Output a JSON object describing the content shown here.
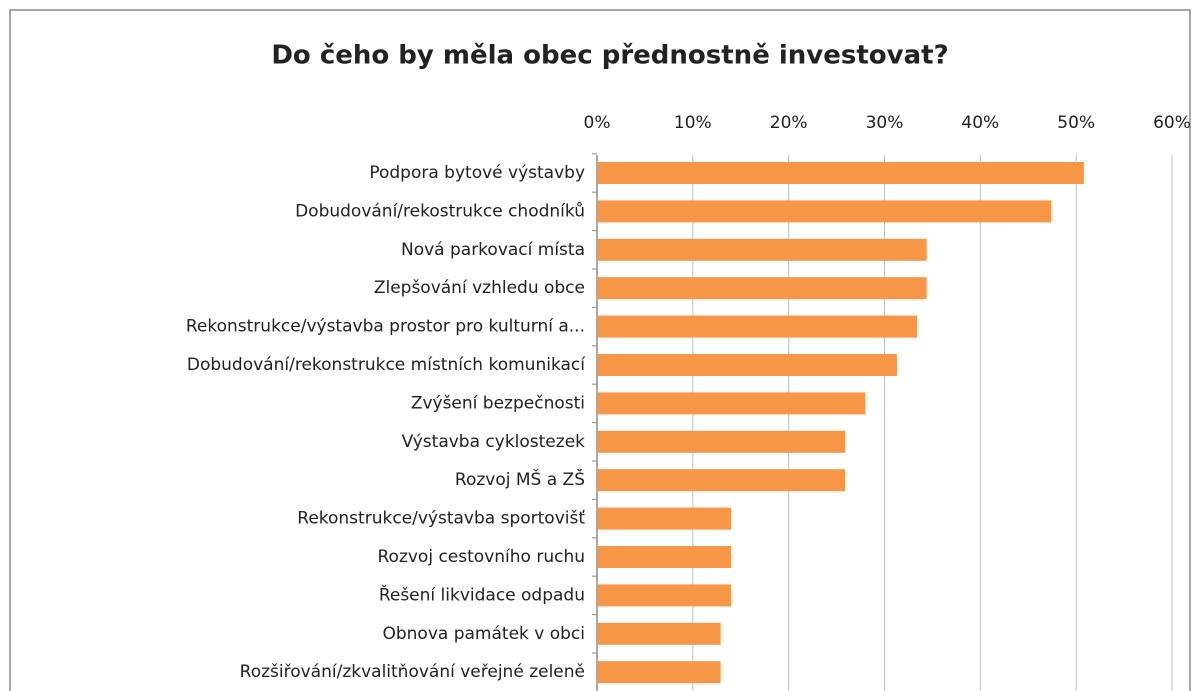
{
  "chart_data": {
    "type": "bar",
    "orientation": "horizontal",
    "title": "Do čeho by měla obec přednostně investovat?",
    "categories": [
      "Podpora bytové výstavby",
      "Dobudování/rekostrukce chodníků",
      "Nová parkovací místa",
      "Zlepšování vzhledu obce",
      "Rekonstrukce/výstavba prostor pro kulturní a...",
      "Dobudování/rekonstrukce místních komunikací",
      "Zvýšení bezpečnosti",
      "Výstavba cyklostezek",
      "Rozvoj MŠ a ZŠ",
      "Rekonstrukce/výstavba sportovišť",
      "Rozvoj cestovního ruchu",
      "Řešení likvidace odpadu",
      "Obnova památek v obci",
      "Rozšiřování/zkvalitňování veřejné zeleně"
    ],
    "values": [
      50.8,
      47.4,
      34.4,
      34.4,
      33.4,
      31.3,
      28.0,
      25.9,
      25.9,
      14.0,
      14.0,
      14.0,
      12.9,
      12.9
    ],
    "color": "#f79646",
    "xlim": [
      0,
      60
    ],
    "xticks": [
      {
        "value": 0,
        "label": "0%"
      },
      {
        "value": 10,
        "label": "10%"
      },
      {
        "value": 20,
        "label": "20%"
      },
      {
        "value": 30,
        "label": "30%"
      },
      {
        "value": 40,
        "label": "40%"
      },
      {
        "value": 50,
        "label": "50%"
      },
      {
        "value": 60,
        "label": "60%"
      }
    ],
    "grid": true
  }
}
